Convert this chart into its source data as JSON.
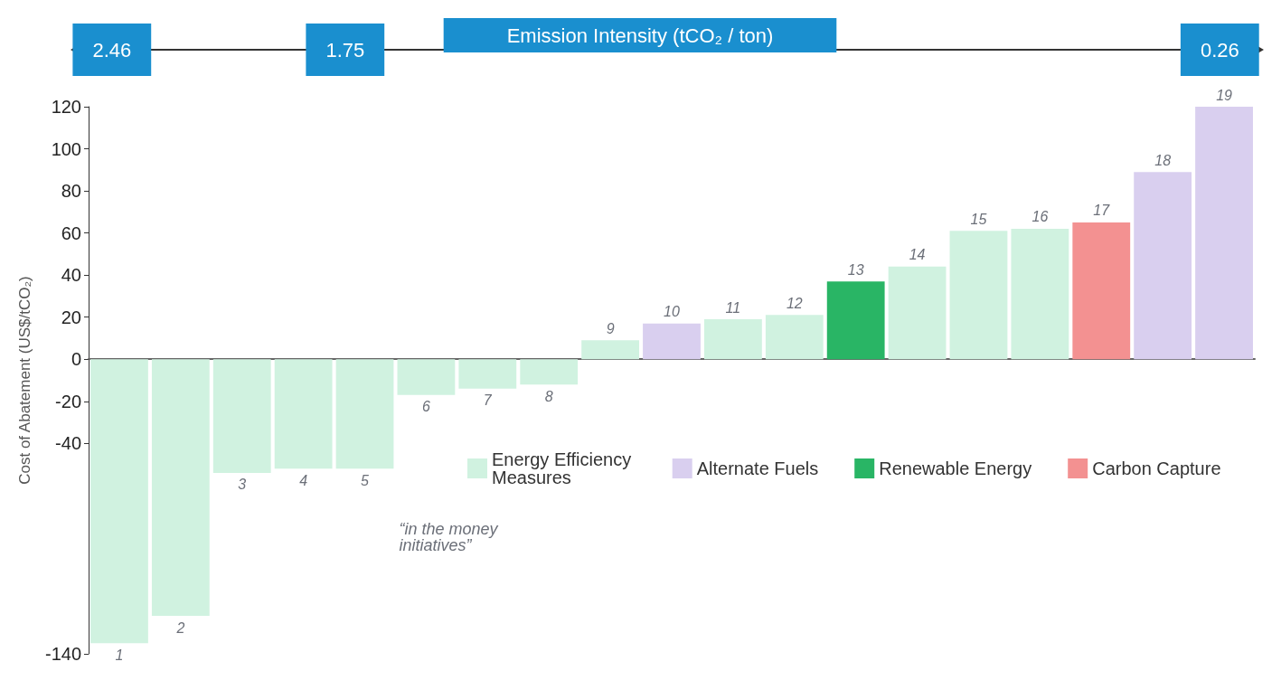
{
  "chart_data": {
    "type": "bar",
    "title": "Emission Intensity (tCO₂ / ton)",
    "ylabel": "Cost of Abatement (US$/tCO₂)",
    "categories": [
      "1",
      "2",
      "3",
      "4",
      "5",
      "6",
      "7",
      "8",
      "9",
      "10",
      "11",
      "12",
      "13",
      "14",
      "15",
      "16",
      "17",
      "18",
      "19"
    ],
    "series": [
      {
        "name": "Energy Efficiency Measures",
        "color": "#d0f2e0",
        "values": [
          -135,
          -122,
          -54,
          -52,
          -52,
          -17,
          -14,
          -12,
          9,
          null,
          19,
          21,
          null,
          44,
          61,
          62,
          null,
          null,
          null
        ]
      },
      {
        "name": "Alternate Fuels",
        "color": "#d9cfef",
        "values": [
          null,
          null,
          null,
          null,
          null,
          null,
          null,
          null,
          null,
          17,
          null,
          null,
          null,
          null,
          null,
          null,
          null,
          89,
          120
        ]
      },
      {
        "name": "Renewable Energy",
        "color": "#29b565",
        "values": [
          null,
          null,
          null,
          null,
          null,
          null,
          null,
          null,
          null,
          null,
          null,
          null,
          37,
          null,
          null,
          null,
          null,
          null,
          null
        ]
      },
      {
        "name": "Carbon Capture",
        "color": "#f39191",
        "values": [
          null,
          null,
          null,
          null,
          null,
          null,
          null,
          null,
          null,
          null,
          null,
          null,
          null,
          null,
          null,
          null,
          65,
          null,
          null
        ]
      }
    ],
    "ylim": [
      -140,
      120
    ],
    "yticks": [
      -140,
      -40,
      -20,
      0,
      20,
      40,
      60,
      80,
      100,
      120
    ],
    "legend": "bottom",
    "annotations": [
      "2.46",
      "1.75",
      "0.26",
      "“in the money initiatives”"
    ]
  }
}
